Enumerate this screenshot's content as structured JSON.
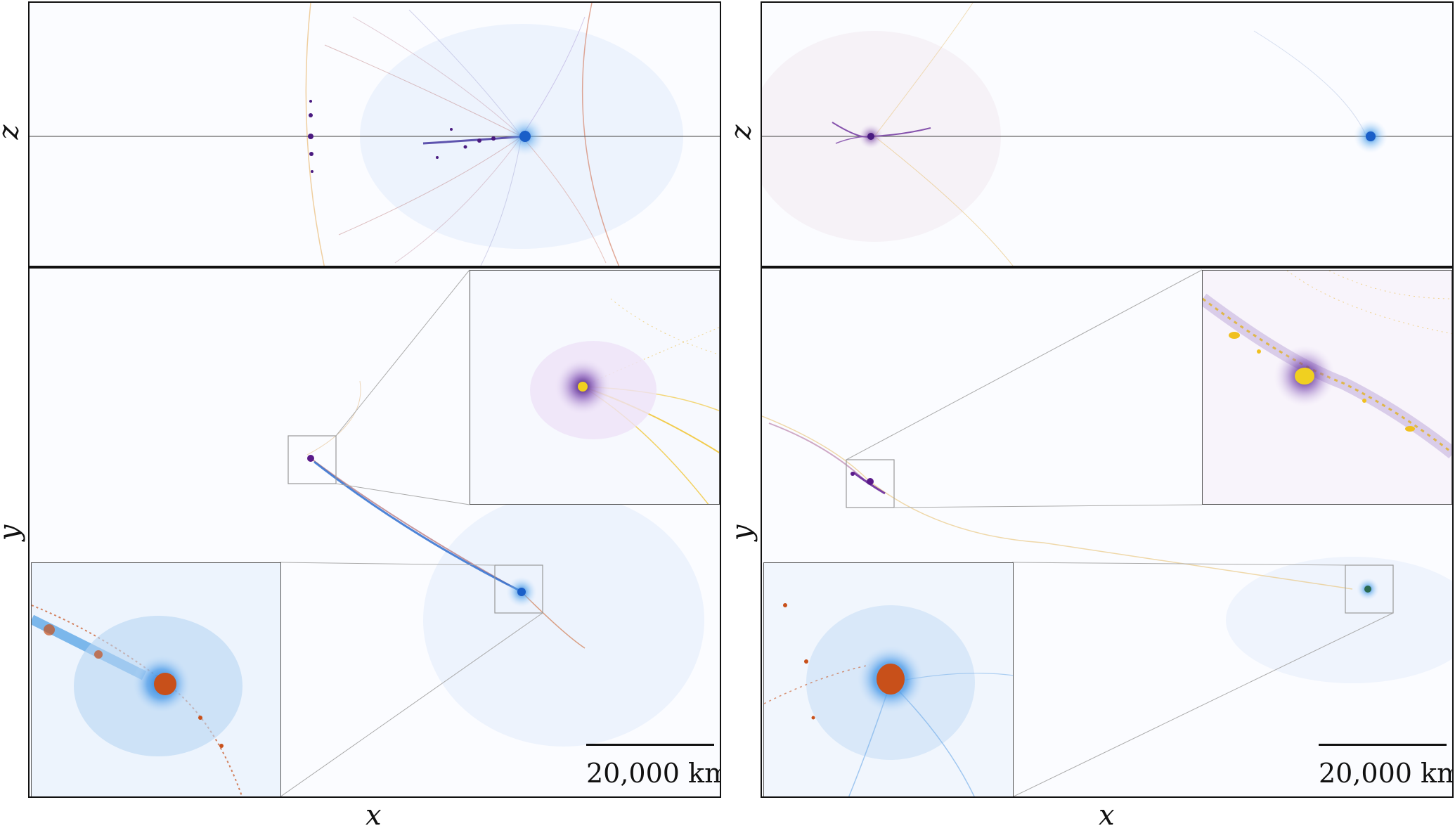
{
  "figure": {
    "left": {
      "top_axis_y": "z",
      "bottom_axis_y": "y",
      "axis_x": "x",
      "scale_bar_label": "20,000 km"
    },
    "right": {
      "top_axis_y": "z",
      "bottom_axis_y": "y",
      "axis_x": "x",
      "scale_bar_label": "20,000 km"
    }
  },
  "colors": {
    "blue_material": "#2f8de0",
    "purple_material": "#4a1a80",
    "yellow_material": "#f0c020",
    "orange_material": "#c8501a",
    "red_debris": "#c0403a"
  }
}
